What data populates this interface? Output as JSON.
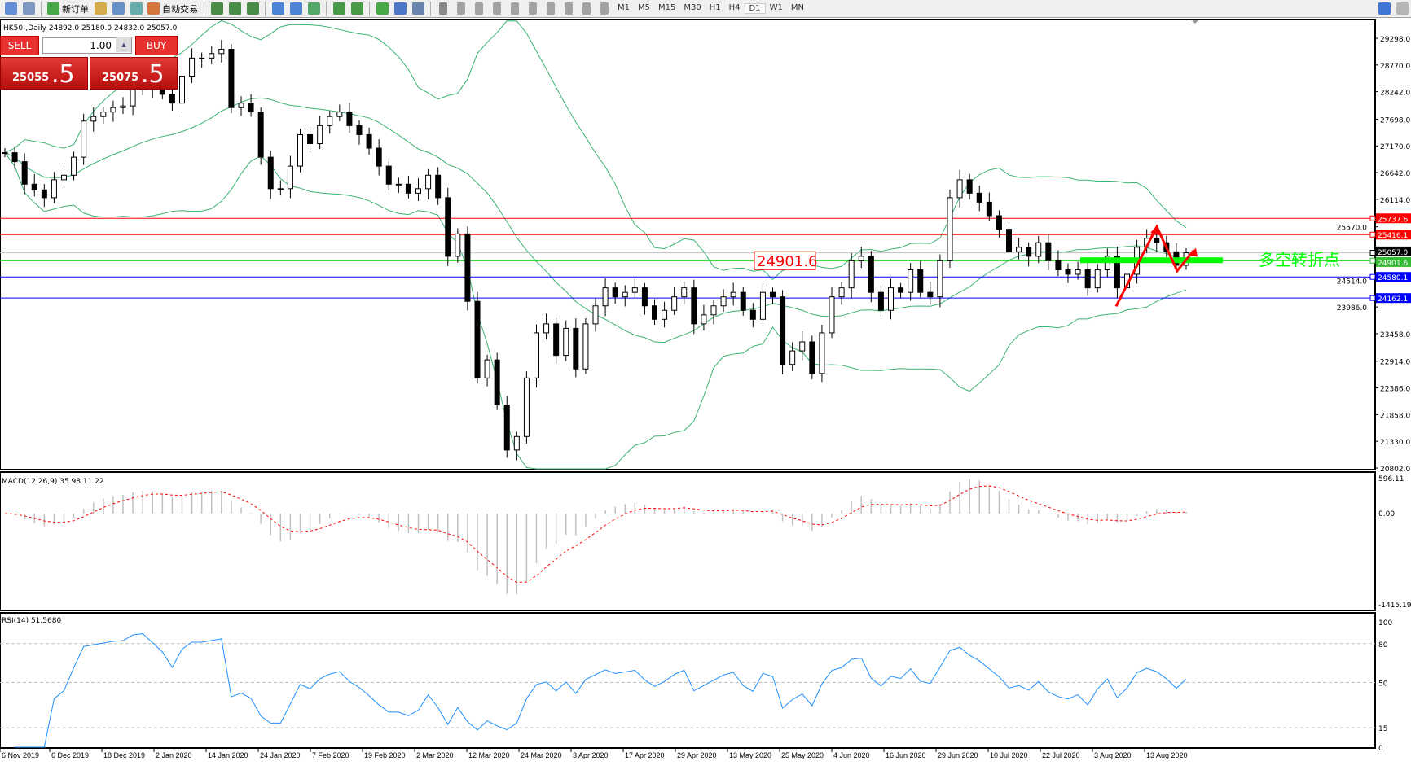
{
  "toolbar": {
    "new_order": "新订单",
    "auto_trading": "自动交易",
    "icons": [
      "new-chart-icon",
      "zoom-chart-icon",
      "new-order-icon",
      "market-watch-icon",
      "navigator-icon",
      "signals-icon",
      "auto-trading-icon",
      "bar-chart-icon",
      "candlestick-icon",
      "line-chart-icon",
      "zoom-in-icon",
      "zoom-out-icon",
      "tile-windows-icon",
      "auto-scroll-icon",
      "chart-shift-icon",
      "indicators-icon",
      "periods-icon",
      "templates-icon",
      "cursor-icon",
      "crosshair-icon",
      "vertical-line-icon",
      "horizontal-line-icon",
      "trendline-icon",
      "fibonacci-icon",
      "channel-icon",
      "text-icon",
      "text-label-icon",
      "arrows-icon",
      "search-icon",
      "chat-icon"
    ],
    "timeframes": [
      "M1",
      "M5",
      "M15",
      "M30",
      "H1",
      "H4",
      "D1",
      "W1",
      "MN"
    ],
    "active_timeframe": "D1"
  },
  "symbol_header": "HK50-,Daily  24892.0 25180.0 24832.0 25057.0",
  "one_click": {
    "sell": "SELL",
    "buy": "BUY",
    "lot": "1.00",
    "sell_big": "25055",
    "sell_frac": ".5",
    "buy_big": "25075",
    "buy_frac": ".5"
  },
  "chart_data": {
    "type": "candlestick",
    "price_ticks": [
      "29298.0",
      "28770.0",
      "28242.0",
      "27698.0",
      "27170.0",
      "26642.0",
      "26114.0",
      "25570.0",
      "24514.0",
      "23986.0",
      "23458.0",
      "22914.0",
      "22386.0",
      "21858.0",
      "21330.0",
      "20802.0"
    ],
    "ylim": [
      20802,
      29298
    ],
    "date_labels": [
      "6 Nov 2019",
      "6 Dec 2019",
      "18 Dec 2019",
      "2 Jan 2020",
      "14 Jan 2020",
      "24 Jan 2020",
      "7 Feb 2020",
      "19 Feb 2020",
      "2 Mar 2020",
      "12 Mar 2020",
      "24 Mar 2020",
      "3 Apr 2020",
      "17 Apr 2020",
      "29 Apr 2020",
      "13 May 2020",
      "25 May 2020",
      "4 Jun 2020",
      "16 Jun 2020",
      "29 Jun 2020",
      "10 Jul 2020",
      "22 Jul 2020",
      "3 Aug 2020",
      "13 Aug 2020"
    ],
    "closes": [
      27036,
      26858,
      26413,
      26300,
      26146,
      26500,
      26590,
      26947,
      27660,
      27750,
      27840,
      27927,
      27960,
      28283,
      28372,
      28283,
      28190,
      28016,
      28550,
      28906,
      28906,
      28995,
      29080,
      27927,
      28016,
      27840,
      26947,
      26324,
      26324,
      26770,
      27392,
      27214,
      27570,
      27750,
      27840,
      27570,
      27392,
      27125,
      26770,
      26413,
      26413,
      26235,
      26324,
      26590,
      26146,
      24988,
      25430,
      24097,
      22583,
      22940,
      22049,
      21158,
      21425,
      22583,
      23474,
      23652,
      23029,
      23563,
      22761,
      23652,
      24008,
      24364,
      24186,
      24275,
      24364,
      24008,
      23742,
      23920,
      24186,
      24364,
      23652,
      23830,
      24008,
      24186,
      24275,
      23920,
      23742,
      24275,
      24186,
      22850,
      23118,
      23296,
      22672,
      23474,
      24186,
      24364,
      24899,
      24988,
      24275,
      23920,
      24364,
      24275,
      24720,
      24275,
      24186,
      24899,
      26146,
      26500,
      26235,
      26057,
      25790,
      25522,
      25077,
      25166,
      24988,
      25256,
      24899,
      24720,
      24632,
      24720,
      24364,
      24720,
      24988,
      24364,
      24632,
      25166,
      25344,
      25256,
      25077,
      24810,
      25057
    ],
    "levels": [
      {
        "price": 25737.6,
        "label": "25737.6",
        "color": "#ff0000"
      },
      {
        "price": 25416.1,
        "label": "25416.1",
        "color": "#ff0000"
      },
      {
        "price": 25057.0,
        "label": "25057.0",
        "color": "#000000",
        "line": "#c0c0c0"
      },
      {
        "price": 24901.6,
        "label": "24901.6",
        "color": "#33bb33",
        "line": "#00cc00"
      },
      {
        "price": 24580.1,
        "label": "24580.1",
        "color": "#0000ff"
      },
      {
        "price": 24162.1,
        "label": "24162.1",
        "color": "#0000ff"
      }
    ],
    "price_box": "24901.6",
    "annotation": "多空转折点",
    "colors": {
      "bands": "#3cb371",
      "macd_hist": "#c0c0c0",
      "macd_signal": "#ff0000",
      "rsi": "#1e90ff",
      "annotation": "#00ff00",
      "arrow": "#ff0000"
    }
  },
  "macd": {
    "label": "MACD(12,26,9) 35.98 11.22",
    "ticks": [
      "596.11",
      "0.00",
      "-1415.19"
    ]
  },
  "rsi": {
    "label": "RSI(14) 51.5680",
    "ticks": [
      "100",
      "80",
      "50",
      "15",
      "0"
    ]
  }
}
